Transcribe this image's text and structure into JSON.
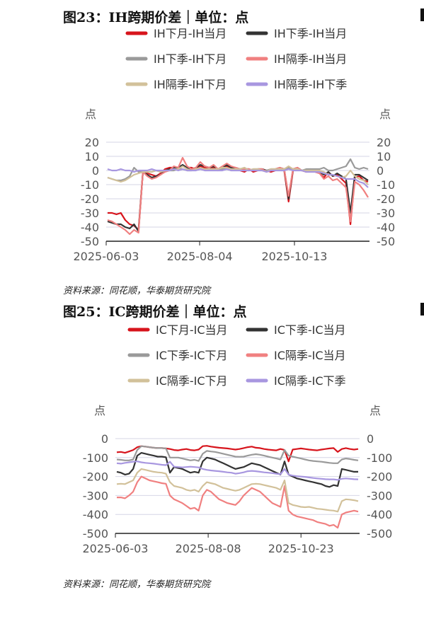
{
  "charts": [
    {
      "title": "图23：IH跨期价差｜单位：点",
      "source": "资料来源：同花顺，华泰期货研究院"
    },
    {
      "title": "图25：IC跨期价差｜单位：点",
      "source": "资料来源：同花顺，华泰期货研究院"
    }
  ],
  "chart_data": [
    {
      "type": "line",
      "ylabel_left": "点",
      "ylabel_right": "点",
      "ylim": [
        -50,
        20
      ],
      "yticks": [
        20,
        10,
        0,
        -10,
        -20,
        -30,
        -40,
        -50
      ],
      "x_tick_labels": [
        "2025-06-03",
        "2025-08-04",
        "2025-10-13"
      ],
      "legend_position": "top",
      "series": [
        {
          "name": "IH下月-IH当月",
          "color": "#d7141c",
          "values": [
            -30,
            -30,
            -31,
            -30,
            -35,
            -38,
            -39,
            -42,
            -1,
            -2,
            -3,
            -4,
            -2,
            1,
            2,
            2,
            1,
            3,
            2,
            2,
            1,
            3,
            2,
            1,
            2,
            0,
            1,
            3,
            2,
            1,
            0,
            -1,
            1,
            -1,
            0,
            1,
            0,
            -1,
            0,
            1,
            0,
            -22,
            0,
            1,
            0,
            -1,
            0,
            -1,
            -2,
            -5,
            -1,
            -4,
            -3,
            -6,
            -9,
            -38,
            -5,
            -4,
            -7,
            -8
          ]
        },
        {
          "name": "IH下季-IH当月",
          "color": "#333333",
          "values": [
            -36,
            -37,
            -38,
            -38,
            -40,
            -41,
            -38,
            -43,
            -1,
            -3,
            -5,
            -4,
            -3,
            0,
            1,
            2,
            2,
            4,
            2,
            1,
            2,
            4,
            3,
            2,
            3,
            1,
            2,
            4,
            2,
            2,
            1,
            1,
            1,
            0,
            1,
            1,
            0,
            0,
            1,
            2,
            1,
            -20,
            1,
            2,
            0,
            0,
            1,
            0,
            -1,
            -3,
            -1,
            -4,
            -2,
            -4,
            -6,
            -30,
            -3,
            -3,
            -5,
            -7
          ]
        },
        {
          "name": "IH下季-IH下月",
          "color": "#9a9a9a",
          "values": [
            -5,
            -6,
            -7,
            -7,
            -6,
            -4,
            2,
            -1,
            -1,
            -1,
            -1,
            0,
            -1,
            0,
            0,
            0,
            1,
            1,
            0,
            0,
            1,
            1,
            1,
            1,
            1,
            1,
            1,
            1,
            0,
            1,
            1,
            2,
            0,
            1,
            1,
            0,
            0,
            1,
            1,
            1,
            1,
            2,
            1,
            1,
            0,
            1,
            1,
            1,
            1,
            2,
            0,
            0,
            1,
            2,
            3,
            8,
            2,
            1,
            2,
            1
          ]
        },
        {
          "name": "IH隔季-IH当月",
          "color": "#f08080",
          "values": [
            -35,
            -36,
            -38,
            -40,
            -42,
            -45,
            -42,
            -44,
            -1,
            -4,
            -6,
            -5,
            -3,
            -1,
            0,
            3,
            2,
            9,
            3,
            1,
            2,
            6,
            3,
            2,
            4,
            1,
            3,
            5,
            3,
            2,
            1,
            1,
            1,
            0,
            1,
            1,
            -1,
            0,
            1,
            2,
            1,
            -18,
            1,
            2,
            0,
            -1,
            0,
            -1,
            -2,
            -6,
            -4,
            -7,
            -6,
            -9,
            -12,
            -36,
            -8,
            -10,
            -14,
            -19
          ]
        },
        {
          "name": "IH隔季-IH下月",
          "color": "#d2c19a",
          "values": [
            -5,
            -6,
            -7,
            -8,
            -7,
            -5,
            -3,
            -2,
            -1,
            -1,
            -1,
            0,
            -1,
            0,
            0,
            1,
            1,
            3,
            1,
            0,
            1,
            2,
            1,
            1,
            1,
            1,
            2,
            2,
            1,
            1,
            1,
            2,
            0,
            1,
            1,
            0,
            -1,
            1,
            1,
            1,
            1,
            3,
            1,
            1,
            0,
            0,
            0,
            0,
            0,
            -1,
            -3,
            -3,
            -4,
            -5,
            -4,
            0,
            -4,
            -6,
            -7,
            -10
          ]
        },
        {
          "name": "IH隔季-IH下季",
          "color": "#a897e0",
          "values": [
            1,
            0,
            0,
            1,
            0,
            0,
            -1,
            0,
            0,
            0,
            1,
            0,
            0,
            0,
            0,
            1,
            0,
            1,
            0,
            0,
            0,
            1,
            0,
            0,
            0,
            0,
            0,
            1,
            0,
            0,
            0,
            0,
            0,
            0,
            0,
            0,
            -1,
            0,
            0,
            0,
            0,
            1,
            0,
            0,
            0,
            -1,
            -1,
            -1,
            -1,
            -2,
            -3,
            -3,
            -4,
            -5,
            -6,
            -6,
            -6,
            -8,
            -9,
            -12
          ]
        }
      ]
    },
    {
      "type": "line",
      "ylabel_left": "点",
      "ylabel_right": "点",
      "ylim": [
        -500,
        0
      ],
      "yticks": [
        0,
        -100,
        -200,
        -300,
        -400,
        -500
      ],
      "x_tick_labels": [
        "2025-06-03",
        "2025-08-08",
        "2025-10-23"
      ],
      "legend_position": "top",
      "series": [
        {
          "name": "IC下月-IC当月",
          "color": "#d7141c",
          "values": [
            -72,
            -70,
            -75,
            -68,
            -60,
            -45,
            -40,
            -42,
            -45,
            -48,
            -50,
            -50,
            -52,
            -55,
            -60,
            -62,
            -58,
            -55,
            -60,
            -62,
            -58,
            -40,
            -38,
            -42,
            -45,
            -48,
            -50,
            -52,
            -55,
            -58,
            -55,
            -50,
            -45,
            -42,
            -48,
            -50,
            -55,
            -58,
            -60,
            -62,
            -55,
            -60,
            -120,
            -58,
            -55,
            -52,
            -55,
            -58,
            -60,
            -62,
            -58,
            -55,
            -52,
            -50,
            -70,
            -55,
            -50,
            -55,
            -58,
            -55
          ]
        },
        {
          "name": "IC下季-IC当月",
          "color": "#333333",
          "values": [
            -175,
            -180,
            -190,
            -185,
            -160,
            -90,
            -75,
            -80,
            -85,
            -90,
            -95,
            -95,
            -98,
            -180,
            -150,
            -155,
            -160,
            -170,
            -180,
            -175,
            -180,
            -120,
            -100,
            -105,
            -110,
            -120,
            -130,
            -140,
            -150,
            -160,
            -155,
            -150,
            -140,
            -130,
            -135,
            -140,
            -150,
            -160,
            -170,
            -180,
            -190,
            -120,
            -190,
            -200,
            -210,
            -215,
            -220,
            -225,
            -230,
            -235,
            -240,
            -250,
            -255,
            -245,
            -250,
            -160,
            -165,
            -170,
            -175,
            -175
          ]
        },
        {
          "name": "IC下季-IC下月",
          "color": "#9a9a9a",
          "values": [
            -110,
            -112,
            -115,
            -115,
            -110,
            -60,
            -40,
            -42,
            -45,
            -48,
            -50,
            -50,
            -52,
            -100,
            -100,
            -100,
            -105,
            -110,
            -115,
            -112,
            -118,
            -80,
            -65,
            -68,
            -70,
            -75,
            -80,
            -85,
            -90,
            -95,
            -96,
            -95,
            -90,
            -85,
            -82,
            -85,
            -90,
            -95,
            -100,
            -105,
            -110,
            -60,
            -90,
            -95,
            -100,
            -105,
            -110,
            -115,
            -118,
            -120,
            -122,
            -125,
            -128,
            -130,
            -130,
            -110,
            -105,
            -108,
            -112,
            -115
          ]
        },
        {
          "name": "IC隔季-IC当月",
          "color": "#f08080",
          "values": [
            -310,
            -310,
            -315,
            -300,
            -280,
            -230,
            -200,
            -210,
            -220,
            -225,
            -230,
            -235,
            -238,
            -300,
            -320,
            -330,
            -340,
            -355,
            -370,
            -365,
            -380,
            -300,
            -270,
            -280,
            -300,
            -320,
            -330,
            -340,
            -345,
            -350,
            -330,
            -300,
            -280,
            -260,
            -270,
            -280,
            -300,
            -320,
            -340,
            -350,
            -360,
            -250,
            -380,
            -400,
            -410,
            -415,
            -420,
            -425,
            -430,
            -440,
            -445,
            -450,
            -460,
            -455,
            -470,
            -400,
            -390,
            -385,
            -380,
            -385
          ]
        },
        {
          "name": "IC隔季-IC下月",
          "color": "#d2c19a",
          "values": [
            -240,
            -238,
            -240,
            -230,
            -220,
            -180,
            -160,
            -165,
            -170,
            -175,
            -178,
            -180,
            -185,
            -230,
            -250,
            -255,
            -260,
            -270,
            -275,
            -270,
            -280,
            -250,
            -230,
            -235,
            -240,
            -250,
            -260,
            -265,
            -270,
            -275,
            -270,
            -260,
            -250,
            -240,
            -238,
            -240,
            -245,
            -250,
            -255,
            -260,
            -270,
            -220,
            -340,
            -350,
            -355,
            -360,
            -362,
            -360,
            -365,
            -370,
            -372,
            -375,
            -378,
            -380,
            -385,
            -330,
            -320,
            -322,
            -325,
            -330
          ]
        },
        {
          "name": "IC隔季-IC下季",
          "color": "#a897e0",
          "values": [
            -130,
            -132,
            -128,
            -125,
            -122,
            -120,
            -125,
            -128,
            -130,
            -132,
            -135,
            -138,
            -140,
            -122,
            -148,
            -150,
            -152,
            -150,
            -148,
            -150,
            -152,
            -160,
            -165,
            -168,
            -170,
            -172,
            -175,
            -178,
            -180,
            -185,
            -182,
            -178,
            -172,
            -170,
            -172,
            -175,
            -178,
            -180,
            -182,
            -185,
            -188,
            -160,
            -190,
            -195,
            -198,
            -200,
            -202,
            -205,
            -208,
            -210,
            -212,
            -214,
            -215,
            -215,
            -218,
            -212,
            -210,
            -212,
            -214,
            -215
          ]
        }
      ]
    }
  ]
}
